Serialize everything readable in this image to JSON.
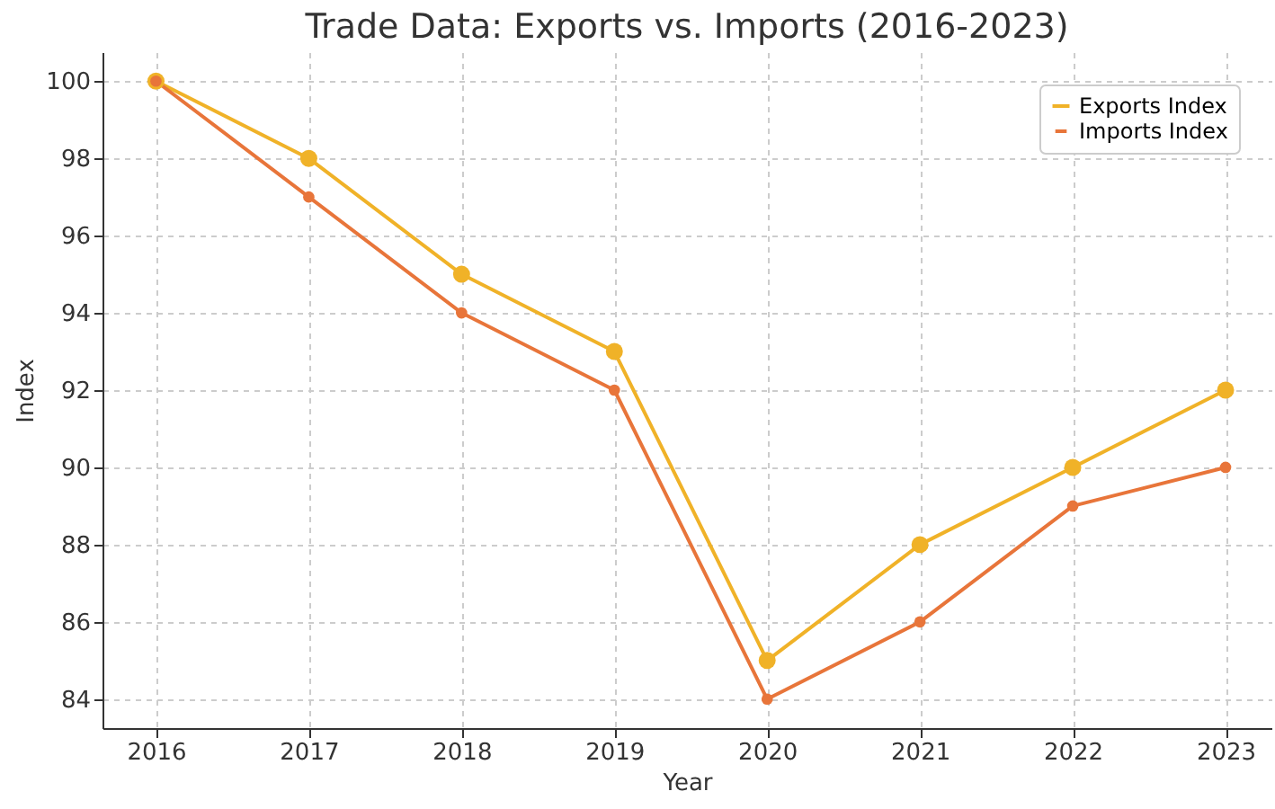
{
  "chart_data": {
    "type": "line",
    "title": "Trade Data: Exports vs. Imports (2016-2023)",
    "xlabel": "Year",
    "ylabel": "Index",
    "x": [
      2016,
      2017,
      2018,
      2019,
      2020,
      2021,
      2022,
      2023
    ],
    "series": [
      {
        "name": "Exports Index",
        "color": "#f0b228",
        "values": [
          100,
          98,
          95,
          93,
          85,
          88,
          90,
          92
        ]
      },
      {
        "name": "Imports Index",
        "color": "#e8753a",
        "values": [
          100,
          97,
          94,
          92,
          84,
          86,
          89,
          90
        ]
      }
    ],
    "xlim": [
      2015.65,
      2023.3
    ],
    "xticks": [
      2016,
      2017,
      2018,
      2019,
      2020,
      2021,
      2022,
      2023
    ],
    "ylim": [
      83.25,
      100.75
    ],
    "yticks": [
      84,
      86,
      88,
      90,
      92,
      94,
      96,
      98,
      100
    ],
    "grid": true,
    "legend": "top right",
    "marker": "circle",
    "line_style": "solid"
  }
}
